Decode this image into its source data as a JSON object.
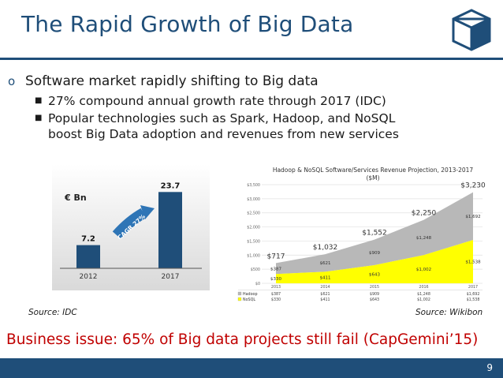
{
  "slide": {
    "title": "The Rapid Growth of Big Data",
    "logo_icon": "cube-icon",
    "accent_color": "#1f4e79",
    "page_number": "9"
  },
  "bullets": {
    "main": "Software market rapidly shifting to Big data",
    "sub": [
      "27% compound annual growth rate through 2017 (IDC)",
      "Popular technologies such as Spark, Hadoop, and NoSQL",
      "boost Big Data adoption and revenues from new services"
    ]
  },
  "sources": {
    "left": "Source: IDC",
    "right": "Source: Wikibon"
  },
  "issue": "Business issue: 65% of Big data projects still fail (CapGemini’15)",
  "chart_data": [
    {
      "type": "bar",
      "unit_label": "€ Bn",
      "categories": [
        "2012",
        "2017"
      ],
      "values": [
        7.2,
        23.7
      ],
      "value_labels": [
        "7.2",
        "23.7"
      ],
      "annotation": "CAGR 27%",
      "ylim": [
        0,
        25
      ],
      "bar_color": "#1f4e79"
    },
    {
      "type": "area",
      "title": "Hadoop & NoSQL Software/Services Revenue Projection, 2013-2017",
      "subtitle": "($M)",
      "x": [
        "2013",
        "2014",
        "2015",
        "2016",
        "2017"
      ],
      "ylim": [
        0,
        3500
      ],
      "yticks": [
        "$0",
        "$500",
        "$1,000",
        "$1,500",
        "$2,000",
        "$2,500",
        "$3,000",
        "$3,500"
      ],
      "totals": [
        "$717",
        "$1,032",
        "$1,552",
        "$2,250",
        "$3,230"
      ],
      "total_values": [
        717,
        1032,
        1552,
        2250,
        3230
      ],
      "series": [
        {
          "name": "Hadoop",
          "values": [
            387,
            621,
            909,
            1248,
            1692
          ],
          "labels": [
            "$387",
            "$621",
            "$909",
            "$1,248",
            "$1,692"
          ],
          "color": "#b8b8b8"
        },
        {
          "name": "NoSQL",
          "values": [
            330,
            411,
            643,
            1002,
            1538
          ],
          "labels": [
            "$330",
            "$411",
            "$643",
            "$1,002",
            "$1,538"
          ],
          "color": "#ffff00"
        }
      ]
    }
  ]
}
